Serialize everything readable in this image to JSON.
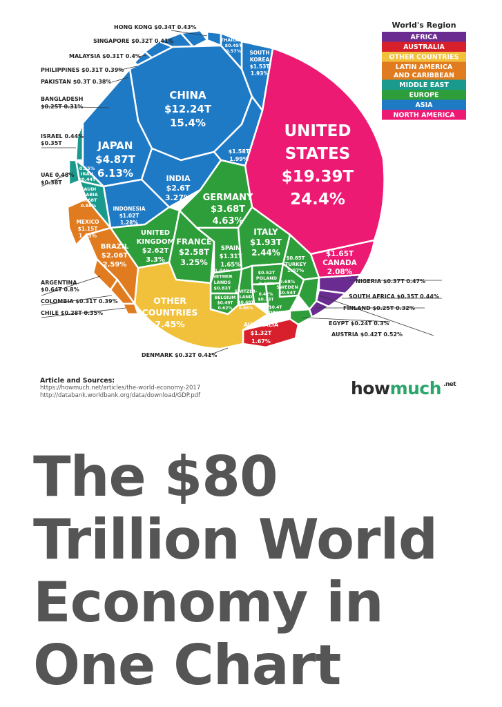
{
  "headline": "The $80 Trillion World Economy in One Chart",
  "brand": {
    "part1": "how",
    "part2": "much",
    "tld": ".net"
  },
  "sources": {
    "title": "Article and Sources:",
    "lines": [
      "https://howmuch.net/articles/the-world-economy-2017",
      "http://databank.worldbank.org/data/download/GDP.pdf"
    ]
  },
  "chart_data": {
    "type": "voronoi-treemap",
    "legend": {
      "title": "World's Region",
      "entries": [
        {
          "name": "AFRICA",
          "color": "#6a2c91"
        },
        {
          "name": "AUSTRALIA",
          "color": "#d7202c"
        },
        {
          "name": "OTHER COUNTRIES",
          "color": "#f2c13c"
        },
        {
          "name": "LATIN AMERICA\nAND CARIBBEAN",
          "color": "#e07b1f"
        },
        {
          "name": "MIDDLE EAST",
          "color": "#1a9a8c"
        },
        {
          "name": "EUROPE",
          "color": "#2e9e3a"
        },
        {
          "name": "ASIA",
          "color": "#1f7ac6"
        },
        {
          "name": "NORTH AMERICA",
          "color": "#ec1a73"
        }
      ]
    },
    "cells": [
      {
        "name": "UNITED STATES",
        "value": "$19.39T",
        "share": "24.4%",
        "region": "NORTH AMERICA"
      },
      {
        "name": "CHINA",
        "value": "$12.24T",
        "share": "15.4%",
        "region": "ASIA"
      },
      {
        "name": "JAPAN",
        "value": "$4.87T",
        "share": "6.13%",
        "region": "ASIA"
      },
      {
        "name": "GERMANY",
        "value": "$3.68T",
        "share": "4.63%",
        "region": "EUROPE"
      },
      {
        "name": "INDIA",
        "value": "$2.6T",
        "share": "3.27%",
        "region": "ASIA"
      },
      {
        "name": "UNITED KINGDOM",
        "value": "$2.62T",
        "share": "3.3%",
        "region": "EUROPE"
      },
      {
        "name": "FRANCE",
        "value": "$2.58T",
        "share": "3.25%",
        "region": "EUROPE"
      },
      {
        "name": "BRAZIL",
        "value": "$2.06T",
        "share": "2.59%",
        "region": "LATIN AMERICA AND CARIBBEAN"
      },
      {
        "name": "ITALY",
        "value": "$1.93T",
        "share": "2.44%",
        "region": "EUROPE"
      },
      {
        "name": "CANADA",
        "value": "$1.65T",
        "share": "2.08%",
        "region": "NORTH AMERICA"
      },
      {
        "name": "RUSSIA",
        "value": "$1.58T",
        "share": "1.99%",
        "region": "ASIA"
      },
      {
        "name": "SOUTH KOREA",
        "value": "$1.53T",
        "share": "1.93%",
        "region": "ASIA"
      },
      {
        "name": "AUSTRALIA",
        "value": "$1.32T",
        "share": "1.67%",
        "region": "AUSTRALIA"
      },
      {
        "name": "SPAIN",
        "value": "$1.31T",
        "share": "1.65%",
        "region": "EUROPE"
      },
      {
        "name": "MEXICO",
        "value": "$1.15T",
        "share": "1.45%",
        "region": "LATIN AMERICA AND CARIBBEAN"
      },
      {
        "name": "INDONESIA",
        "value": "$1.02T",
        "share": "1.28%",
        "region": "ASIA"
      },
      {
        "name": "TURKEY",
        "value": "$0.85T",
        "share": "1.07%",
        "region": "EUROPE"
      },
      {
        "name": "NETHERLANDS",
        "value": "$0.83T",
        "share": "1.04%",
        "region": "EUROPE"
      },
      {
        "name": "SWITZERLAND",
        "value": "$0.68T",
        "share": "0.86%",
        "region": "EUROPE"
      },
      {
        "name": "SAUDI ARABIA",
        "value": "$0.68T",
        "share": "0.86%",
        "region": "MIDDLE EAST"
      },
      {
        "name": "SWEDEN",
        "value": "$0.54T",
        "share": "0.68%",
        "region": "EUROPE"
      },
      {
        "name": "POLAND",
        "value": "$0.52T",
        "share": "0.66%",
        "region": "EUROPE"
      },
      {
        "name": "BELGIUM",
        "value": "$0.49T",
        "share": "0.62%",
        "region": "EUROPE"
      },
      {
        "name": "IRAN",
        "value": "$0.44T",
        "share": "0.55%",
        "region": "MIDDLE EAST"
      },
      {
        "name": "THAILAND",
        "value": "$0.45T",
        "share": "0.57%",
        "region": "ASIA"
      },
      {
        "name": "NORWAY",
        "value": "$0.4T",
        "share": "0.5%",
        "region": "EUROPE"
      },
      {
        "name": "IRL",
        "value": "$0.33T",
        "share": "0.42%",
        "region": "EUROPE"
      },
      {
        "name": "OTHER COUNTRIES",
        "value": "",
        "share": "7.45%",
        "region": "OTHER COUNTRIES"
      }
    ],
    "callouts": [
      "HONG KONG $0.34T 0.43%",
      "SINGAPORE $0.32T 0.41%",
      "MALAYSIA $0.31T 0.4%",
      "PHILIPPINES $0.31T 0.39%",
      "PAKISTAN $0.3T 0.38%",
      "BANGLADESH",
      "$0.25T 0.31%",
      "ISRAEL 0.44%",
      "$0.35T",
      "UAE 0.48%",
      "$0.38T",
      "ARGENTINA",
      "$0.64T 0.8%",
      "COLOMBIA $0.31T 0.39%",
      "CHILE $0.28T 0.35%",
      "NIGERIA $0.37T 0.47%",
      "SOUTH AFRICA $0.35T 0.44%",
      "FINLAND $0.25T 0.32%",
      "EGYPT $0.24T 0.3%",
      "AUSTRIA $0.42T 0.52%",
      "DENMARK $0.32T 0.41%"
    ]
  }
}
